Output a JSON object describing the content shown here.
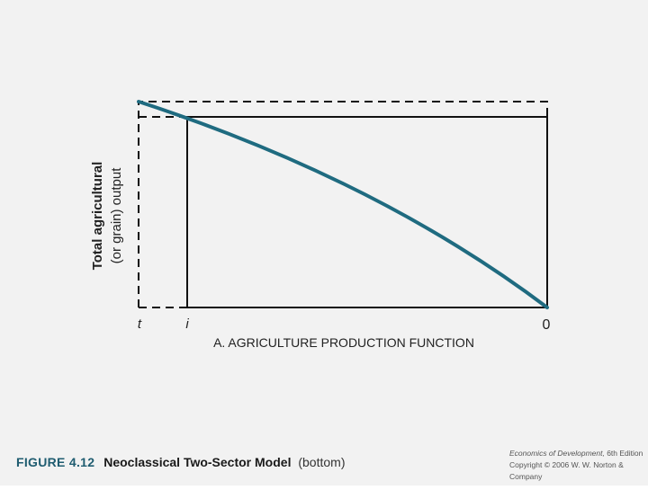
{
  "diagram": {
    "y_axis_label_line1": "Total agricultural",
    "y_axis_label_line2": "(or grain) output",
    "x_tick_left": "t",
    "x_tick_mid": "i",
    "x_tick_origin": "0",
    "panel_title": "A. AGRICULTURE PRODUCTION FUNCTION"
  },
  "caption": {
    "figure_number": "FIGURE 4.12",
    "title": "Neoclassical Two-Sector Model",
    "subtitle": "(bottom)"
  },
  "credit": {
    "book_title": "Economics of Development,",
    "edition": " 6th Edition",
    "copyright": "Copyright © 2006 W. W. Norton & Company"
  },
  "colors": {
    "curve": "#1f6b80",
    "lines": "#111111",
    "caption_number": "#1f5c70"
  }
}
